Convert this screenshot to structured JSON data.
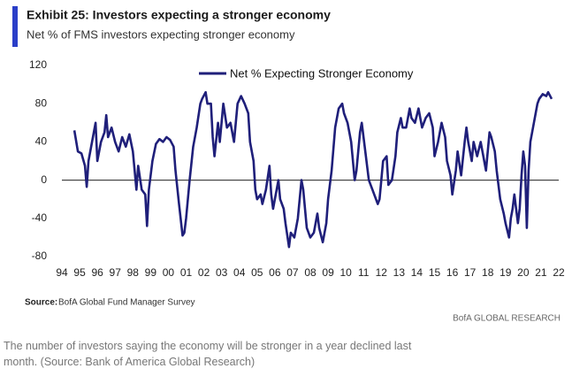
{
  "chart_data": {
    "type": "line",
    "title": "Exhibit 25: Investors expecting a stronger economy",
    "subtitle": "Net % of FMS investors expecting stronger economy",
    "source_label": "Source:",
    "source": "BofA Global Fund Manager Survey",
    "brand": "BofA GLOBAL RESEARCH",
    "caption": "The number of investors saying the economy will be stronger in a year declined last month. (Source: Bank of America Global Research)",
    "legend": "top",
    "zero_line": true,
    "x": [
      1994.7,
      1994.9,
      1995.1,
      1995.3,
      1995.4,
      1995.5,
      1995.7,
      1995.9,
      1996.0,
      1996.2,
      1996.4,
      1996.5,
      1996.6,
      1996.8,
      1997.0,
      1997.2,
      1997.4,
      1997.6,
      1997.8,
      1998.0,
      1998.1,
      1998.2,
      1998.3,
      1998.5,
      1998.7,
      1998.8,
      1998.9,
      1999.1,
      1999.3,
      1999.5,
      1999.7,
      1999.9,
      2000.1,
      2000.3,
      2000.4,
      2000.6,
      2000.8,
      2000.9,
      2001.0,
      2001.2,
      2001.4,
      2001.6,
      2001.8,
      2001.9,
      2002.1,
      2002.2,
      2002.4,
      2002.5,
      2002.6,
      2002.8,
      2002.9,
      2003.1,
      2003.3,
      2003.5,
      2003.7,
      2003.9,
      2004.1,
      2004.3,
      2004.5,
      2004.6,
      2004.8,
      2004.9,
      2005.0,
      2005.2,
      2005.3,
      2005.5,
      2005.7,
      2005.8,
      2005.9,
      2006.0,
      2006.2,
      2006.3,
      2006.5,
      2006.6,
      2006.8,
      2006.9,
      2007.1,
      2007.3,
      2007.5,
      2007.6,
      2007.8,
      2008.0,
      2008.2,
      2008.4,
      2008.5,
      2008.7,
      2008.9,
      2009.0,
      2009.2,
      2009.4,
      2009.6,
      2009.8,
      2009.9,
      2010.1,
      2010.3,
      2010.5,
      2010.6,
      2010.8,
      2010.9,
      2011.1,
      2011.3,
      2011.5,
      2011.6,
      2011.8,
      2011.9,
      2012.1,
      2012.3,
      2012.4,
      2012.6,
      2012.8,
      2012.9,
      2013.1,
      2013.2,
      2013.4,
      2013.6,
      2013.7,
      2013.9,
      2014.1,
      2014.3,
      2014.5,
      2014.7,
      2014.9,
      2015.0,
      2015.2,
      2015.4,
      2015.6,
      2015.7,
      2015.9,
      2016.0,
      2016.2,
      2016.3,
      2016.5,
      2016.7,
      2016.8,
      2016.9,
      2017.1,
      2017.2,
      2017.4,
      2017.6,
      2017.8,
      2017.9,
      2018.1,
      2018.2,
      2018.4,
      2018.5,
      2018.7,
      2018.9,
      2019.0,
      2019.2,
      2019.3,
      2019.4,
      2019.5,
      2019.7,
      2019.8,
      2019.9,
      2020.0,
      2020.1,
      2020.2,
      2020.3,
      2020.4,
      2020.6,
      2020.8,
      2020.9,
      2021.1,
      2021.3,
      2021.4,
      2021.6
    ],
    "series": [
      {
        "name": "Net % Expecting Stronger Economy",
        "color": "#1f1f7a",
        "values": [
          52,
          30,
          28,
          15,
          -7,
          20,
          40,
          60,
          20,
          40,
          50,
          68,
          45,
          55,
          40,
          30,
          45,
          35,
          48,
          30,
          10,
          -10,
          15,
          -10,
          -15,
          -48,
          -10,
          20,
          38,
          43,
          40,
          45,
          42,
          35,
          10,
          -25,
          -58,
          -55,
          -40,
          0,
          35,
          55,
          80,
          85,
          92,
          80,
          80,
          45,
          25,
          60,
          40,
          80,
          55,
          60,
          40,
          80,
          88,
          80,
          70,
          40,
          20,
          -10,
          -20,
          -15,
          -25,
          -10,
          15,
          -15,
          -30,
          -20,
          0,
          -20,
          -30,
          -45,
          -70,
          -55,
          -60,
          -40,
          0,
          -10,
          -50,
          -60,
          -55,
          -35,
          -50,
          -65,
          -45,
          -20,
          10,
          55,
          75,
          80,
          70,
          60,
          40,
          0,
          10,
          50,
          60,
          30,
          0,
          -10,
          -15,
          -25,
          -20,
          20,
          25,
          -5,
          0,
          25,
          50,
          65,
          55,
          55,
          75,
          65,
          60,
          75,
          55,
          65,
          70,
          55,
          25,
          40,
          60,
          45,
          20,
          5,
          -15,
          10,
          30,
          5,
          40,
          55,
          40,
          20,
          40,
          25,
          40,
          20,
          10,
          50,
          45,
          30,
          10,
          -20,
          -35,
          -45,
          -60,
          -40,
          -30,
          -15,
          -45,
          -30,
          5,
          30,
          15,
          -50,
          10,
          40,
          60,
          80,
          85,
          90,
          88,
          92,
          85
        ]
      }
    ],
    "xlim": [
      1994,
      2022
    ],
    "xticks": [
      {
        "value": 1994,
        "label": "94"
      },
      {
        "value": 1995,
        "label": "95"
      },
      {
        "value": 1996,
        "label": "96"
      },
      {
        "value": 1997,
        "label": "97"
      },
      {
        "value": 1998,
        "label": "98"
      },
      {
        "value": 1999,
        "label": "99"
      },
      {
        "value": 2000,
        "label": "00"
      },
      {
        "value": 2001,
        "label": "01"
      },
      {
        "value": 2002,
        "label": "02"
      },
      {
        "value": 2003,
        "label": "03"
      },
      {
        "value": 2004,
        "label": "04"
      },
      {
        "value": 2005,
        "label": "05"
      },
      {
        "value": 2006,
        "label": "06"
      },
      {
        "value": 2007,
        "label": "07"
      },
      {
        "value": 2008,
        "label": "08"
      },
      {
        "value": 2009,
        "label": "09"
      },
      {
        "value": 2010,
        "label": "10"
      },
      {
        "value": 2011,
        "label": "11"
      },
      {
        "value": 2012,
        "label": "12"
      },
      {
        "value": 2013,
        "label": "13"
      },
      {
        "value": 2014,
        "label": "14"
      },
      {
        "value": 2015,
        "label": "15"
      },
      {
        "value": 2016,
        "label": "16"
      },
      {
        "value": 2017,
        "label": "17"
      },
      {
        "value": 2018,
        "label": "18"
      },
      {
        "value": 2019,
        "label": "19"
      },
      {
        "value": 2020,
        "label": "20"
      },
      {
        "value": 2021,
        "label": "21"
      },
      {
        "value": 2022,
        "label": "22"
      }
    ],
    "ylim": [
      -80,
      120
    ],
    "yticks": [
      -80,
      -40,
      0,
      40,
      80,
      120
    ]
  }
}
